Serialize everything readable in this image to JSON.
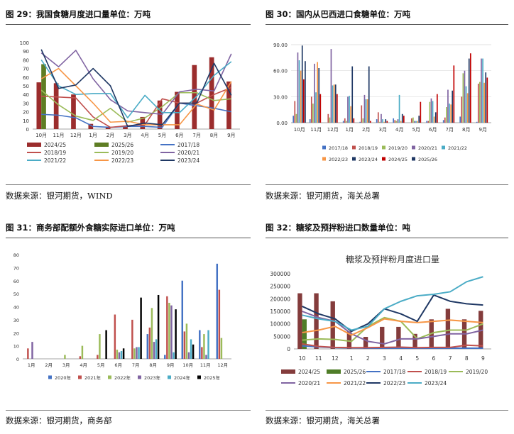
{
  "months12": [
    "10月",
    "11月",
    "12月",
    "1月",
    "2月",
    "3月",
    "4月",
    "5月",
    "6月",
    "7月",
    "8月",
    "9月"
  ],
  "panels": {
    "p29": {
      "title": "图 29：我国食糖月度进口量单位：万吨",
      "source": "数据来源：银河期货，WIND"
    },
    "p30": {
      "title": "图 30：国内从巴西进口食糖单位：万吨",
      "source": "数据来源：银河期货，海关总署"
    },
    "p31": {
      "title": "图 31：商务部配额外食糖实际进口单位：万吨",
      "source": "数据来源：银河期货，商务部"
    },
    "p32": {
      "title": "图 32：糖浆及预拌粉进口数量单位：吨",
      "source": "数据来源：银河期货，海关总署"
    }
  },
  "colors": {
    "s2024_25": "#9B2D2D",
    "s2025_26": "#5E7D24",
    "s2017_18": "#4472C4",
    "s2018_19": "#C0504D",
    "s2019_20": "#9BBB59",
    "s2020_21": "#8064A2",
    "s2021_22": "#4BACC6",
    "s2022_23": "#F79646",
    "s2023_24": "#1F3864",
    "s2024_25b": "#C00000",
    "s2025_26b": "#203864"
  },
  "chart_data": [
    {
      "id": "c29",
      "type": "bar+line",
      "title": "我国食糖月度进口量",
      "categories": [
        "10月",
        "11月",
        "12月",
        "1月",
        "2月",
        "3月",
        "4月",
        "5月",
        "6月",
        "7月",
        "8月",
        "9月"
      ],
      "ylim": [
        0,
        100
      ],
      "yticks": [
        0,
        10,
        20,
        30,
        40,
        50,
        60,
        70,
        80,
        90,
        100
      ],
      "bars": [
        {
          "name": "2024/25",
          "color": "#9B2D2D",
          "values": [
            54,
            53,
            40,
            6,
            2,
            4,
            14,
            33,
            43,
            74,
            83,
            55
          ]
        },
        {
          "name": "2025/26",
          "color": "#5E7D24",
          "values": [
            75,
            null,
            null,
            null,
            null,
            null,
            null,
            null,
            null,
            null,
            null,
            null
          ]
        }
      ],
      "lines": [
        {
          "name": "2017/18",
          "color": "#4472C4",
          "values": [
            17,
            16,
            13,
            3,
            2,
            3,
            3,
            2,
            30,
            27,
            24,
            20
          ]
        },
        {
          "name": "2018/19",
          "color": "#C0504D",
          "values": [
            38,
            37,
            36,
            14,
            2,
            4,
            5,
            35,
            30,
            30,
            40,
            48
          ]
        },
        {
          "name": "2019/20",
          "color": "#9BBB59",
          "values": [
            45,
            28,
            15,
            10,
            24,
            8,
            13,
            26,
            42,
            42,
            33,
            35
          ]
        },
        {
          "name": "2020/21",
          "color": "#8064A2",
          "values": [
            88,
            72,
            91,
            58,
            34,
            21,
            19,
            17,
            43,
            46,
            44,
            87
          ]
        },
        {
          "name": "2021/22",
          "color": "#4BACC6",
          "values": [
            80,
            50,
            40,
            41,
            41,
            13,
            39,
            19,
            19,
            38,
            62,
            78
          ]
        },
        {
          "name": "2022/23",
          "color": "#F79646",
          "values": [
            58,
            70,
            50,
            30,
            8,
            9,
            5,
            5,
            5,
            29,
            22,
            55
          ]
        },
        {
          "name": "2023/24",
          "color": "#1F3864",
          "values": [
            92,
            47,
            51,
            70,
            50,
            3,
            7,
            5,
            30,
            30,
            76,
            39
          ]
        }
      ],
      "legend": [
        "2024/25",
        "2025/26",
        "2017/18",
        "2018/19",
        "2019/20",
        "2020/21",
        "2021/22",
        "2022/23",
        "2023/24"
      ]
    },
    {
      "id": "c30",
      "type": "bar",
      "title": "国内从巴西进口食糖",
      "categories": [
        "10月",
        "11月",
        "12月",
        "1月",
        "2月",
        "3月",
        "4月",
        "5月",
        "6月",
        "7月",
        "8月",
        "9月"
      ],
      "ylim": [
        0,
        90
      ],
      "yticks": [
        "0.00",
        "30.00",
        "60.00",
        "90.00"
      ],
      "series": [
        {
          "name": "2017/18",
          "color": "#4472C4",
          "values": [
            8,
            4,
            0,
            2,
            1,
            4,
            5,
            0,
            2,
            3,
            7,
            1
          ]
        },
        {
          "name": "2018/19",
          "color": "#C0504D",
          "values": [
            25,
            30,
            10,
            5,
            20,
            12,
            3,
            5,
            2,
            6,
            30,
            45
          ]
        },
        {
          "name": "2019/20",
          "color": "#9BBB59",
          "values": [
            10,
            22,
            6,
            2,
            5,
            1,
            2,
            6,
            24,
            18,
            57,
            47
          ]
        },
        {
          "name": "2020/21",
          "color": "#8064A2",
          "values": [
            81,
            68,
            85,
            30,
            32,
            10,
            4,
            2,
            28,
            38,
            60,
            74
          ]
        },
        {
          "name": "2021/22",
          "color": "#4BACC6",
          "values": [
            72,
            35,
            43,
            31,
            27,
            4,
            32,
            2,
            25,
            22,
            42,
            74
          ]
        },
        {
          "name": "2022/23",
          "color": "#F79646",
          "values": [
            60,
            70,
            44,
            19,
            27,
            1,
            2,
            2,
            7,
            21,
            34,
            46
          ]
        },
        {
          "name": "2023/24",
          "color": "#1F3864",
          "values": [
            89,
            63,
            44,
            65,
            65,
            4,
            10,
            8,
            12,
            37,
            74,
            58
          ]
        },
        {
          "name": "2024/25",
          "color": "#C00000",
          "values": [
            50,
            33,
            33,
            5,
            2,
            2,
            8,
            24,
            33,
            66,
            80,
            52
          ]
        },
        {
          "name": "2025/26",
          "color": "#203864",
          "values": [
            71,
            null,
            null,
            null,
            null,
            null,
            null,
            null,
            null,
            null,
            null,
            null
          ]
        }
      ],
      "legend": [
        "2017/18",
        "2018/19",
        "2019/20",
        "2020/21",
        "2021/22",
        "2022/23",
        "2023/24",
        "2024/25",
        "2025/26"
      ]
    },
    {
      "id": "c31",
      "type": "bar",
      "title": "商务部配额外食糖实际进口",
      "categories": [
        "1月",
        "2月",
        "3月",
        "4月",
        "5月",
        "6月",
        "7月",
        "8月",
        "9月",
        "10月",
        "11月",
        "12月"
      ],
      "ylim": [
        0,
        80
      ],
      "yticks": [
        0,
        10,
        20,
        30,
        40,
        50,
        60,
        70,
        80
      ],
      "series": [
        {
          "name": "2020年",
          "color": "#4472C4",
          "values": [
            0,
            0,
            0,
            0,
            0,
            0,
            0,
            19,
            3,
            60,
            22,
            73
          ]
        },
        {
          "name": "2021年",
          "color": "#C0504D",
          "values": [
            8,
            0,
            0,
            2,
            3,
            34,
            30,
            24,
            48,
            21,
            9,
            53
          ]
        },
        {
          "name": "2022年",
          "color": "#9BBB59",
          "values": [
            0,
            0,
            3,
            10,
            19,
            7,
            8,
            39,
            43,
            27,
            19,
            16
          ]
        },
        {
          "name": "2023年",
          "color": "#8064A2",
          "values": [
            13,
            0,
            0,
            0,
            0,
            5,
            9,
            13,
            41,
            5,
            3,
            0
          ]
        },
        {
          "name": "2024年",
          "color": "#4BACC6",
          "values": [
            0,
            0,
            0,
            0,
            0,
            6,
            9,
            15,
            5,
            15,
            22,
            0
          ]
        },
        {
          "name": "2025年",
          "color": "#000000",
          "values": [
            0,
            0,
            0,
            0,
            22,
            8,
            47,
            49,
            38,
            11,
            null,
            null
          ]
        }
      ],
      "legend": [
        "2020年",
        "2021年",
        "2022年",
        "2023年",
        "2024年",
        "2025年"
      ]
    },
    {
      "id": "c32",
      "type": "bar+line",
      "title": "糖浆及预拌粉月度进口量",
      "categories": [
        "10",
        "11",
        "12",
        "1",
        "2",
        "3",
        "4",
        "5",
        "6",
        "7",
        "8",
        "9"
      ],
      "ylim": [
        0,
        300000
      ],
      "yticks": [
        "0",
        "50000",
        "100000",
        "150000",
        "200000",
        "250000",
        "300000"
      ],
      "bars": [
        {
          "name": "2024/25",
          "color": "#843C3C",
          "values": [
            222000,
            222000,
            190000,
            70000,
            48000,
            88000,
            88000,
            60000,
            118000,
            160000,
            118000,
            152000
          ]
        },
        {
          "name": "2025/26",
          "color": "#4F7D28",
          "values": [
            118000,
            null,
            null,
            null,
            null,
            null,
            null,
            null,
            null,
            null,
            null,
            null
          ]
        }
      ],
      "lines": [
        {
          "name": "2017/18",
          "color": "#4472C4",
          "values": [
            12000,
            8000,
            5000,
            4000,
            3000,
            3000,
            3000,
            3000,
            3000,
            3000,
            3000,
            3000
          ]
        },
        {
          "name": "2018/19",
          "color": "#C0504D",
          "values": [
            20000,
            10000,
            6000,
            5000,
            5000,
            6000,
            7000,
            5000,
            6000,
            6000,
            15000,
            12000
          ]
        },
        {
          "name": "2019/20",
          "color": "#9BBB59",
          "values": [
            35000,
            40000,
            38000,
            30000,
            90000,
            125000,
            110000,
            40000,
            65000,
            75000,
            75000,
            100000
          ]
        },
        {
          "name": "2020/21",
          "color": "#8064A2",
          "values": [
            150000,
            125000,
            110000,
            60000,
            30000,
            20000,
            40000,
            40000,
            50000,
            60000,
            60000,
            75000
          ]
        },
        {
          "name": "2021/22",
          "color": "#F79646",
          "values": [
            65000,
            75000,
            90000,
            55000,
            85000,
            120000,
            110000,
            105000,
            110000,
            115000,
            110000,
            105000
          ]
        },
        {
          "name": "2022/23",
          "color": "#1F3864",
          "values": [
            170000,
            140000,
            120000,
            70000,
            100000,
            160000,
            140000,
            110000,
            215000,
            190000,
            180000,
            175000
          ]
        },
        {
          "name": "2023/24",
          "color": "#4BACC6",
          "values": [
            135000,
            120000,
            110000,
            75000,
            90000,
            160000,
            190000,
            212000,
            218000,
            228000,
            268000,
            288000
          ]
        }
      ],
      "legend": [
        "2024/25",
        "2025/26",
        "2017/18",
        "2018/19",
        "2019/20",
        "2020/21",
        "2021/22",
        "2022/23",
        "2023/24"
      ]
    }
  ]
}
